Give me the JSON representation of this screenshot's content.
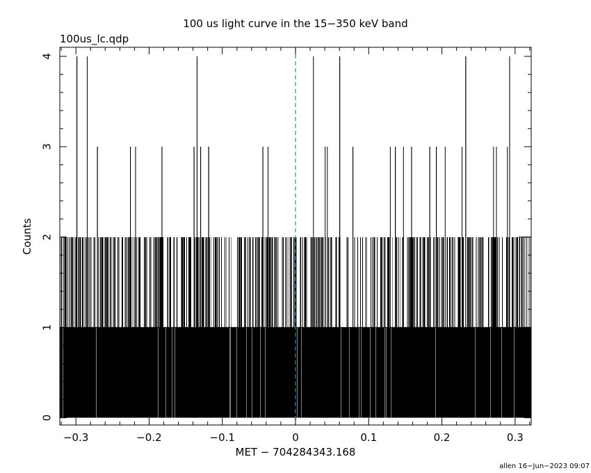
{
  "chart_data": {
    "type": "bar",
    "title": "100 us light curve in the 15−350 keV band",
    "file_label": "100us_lc.qdp",
    "xlabel": "MET − 704284343.168",
    "ylabel": "Counts",
    "footer": "allen 16−Jun−2023 09:07",
    "xlim": [
      -0.322,
      0.322
    ],
    "ylim": [
      -0.08,
      4.1
    ],
    "bin_width": 0.0001,
    "x_ticks": [
      -0.3,
      -0.2,
      -0.1,
      0,
      0.1,
      0.2,
      0.3
    ],
    "x_tick_labels": [
      "−0.3",
      "−0.2",
      "−0.1",
      "0",
      "0.1",
      "0.2",
      "0.3"
    ],
    "y_ticks": [
      0,
      1,
      2,
      3,
      4
    ],
    "y_tick_labels": [
      "0",
      "1",
      "2",
      "3",
      "4"
    ],
    "reference_line_x": 0,
    "reference_line_color": "#1f8fb5",
    "bar_color": "#000000",
    "grid": false,
    "peaks": {
      "count_4_x": [
        -0.2985,
        -0.2845,
        -0.1345,
        0.0245,
        0.0605,
        0.2325,
        0.2925
      ],
      "count_3_x": [
        -0.2705,
        -0.2255,
        -0.2185,
        -0.1825,
        -0.1385,
        -0.1295,
        -0.1185,
        -0.0445,
        -0.0375,
        0.0405,
        0.0435,
        0.0785,
        0.1295,
        0.1365,
        0.1475,
        0.1585,
        0.1835,
        0.1925,
        0.2045,
        0.2275,
        0.2705,
        0.2745,
        0.2895
      ]
    }
  }
}
